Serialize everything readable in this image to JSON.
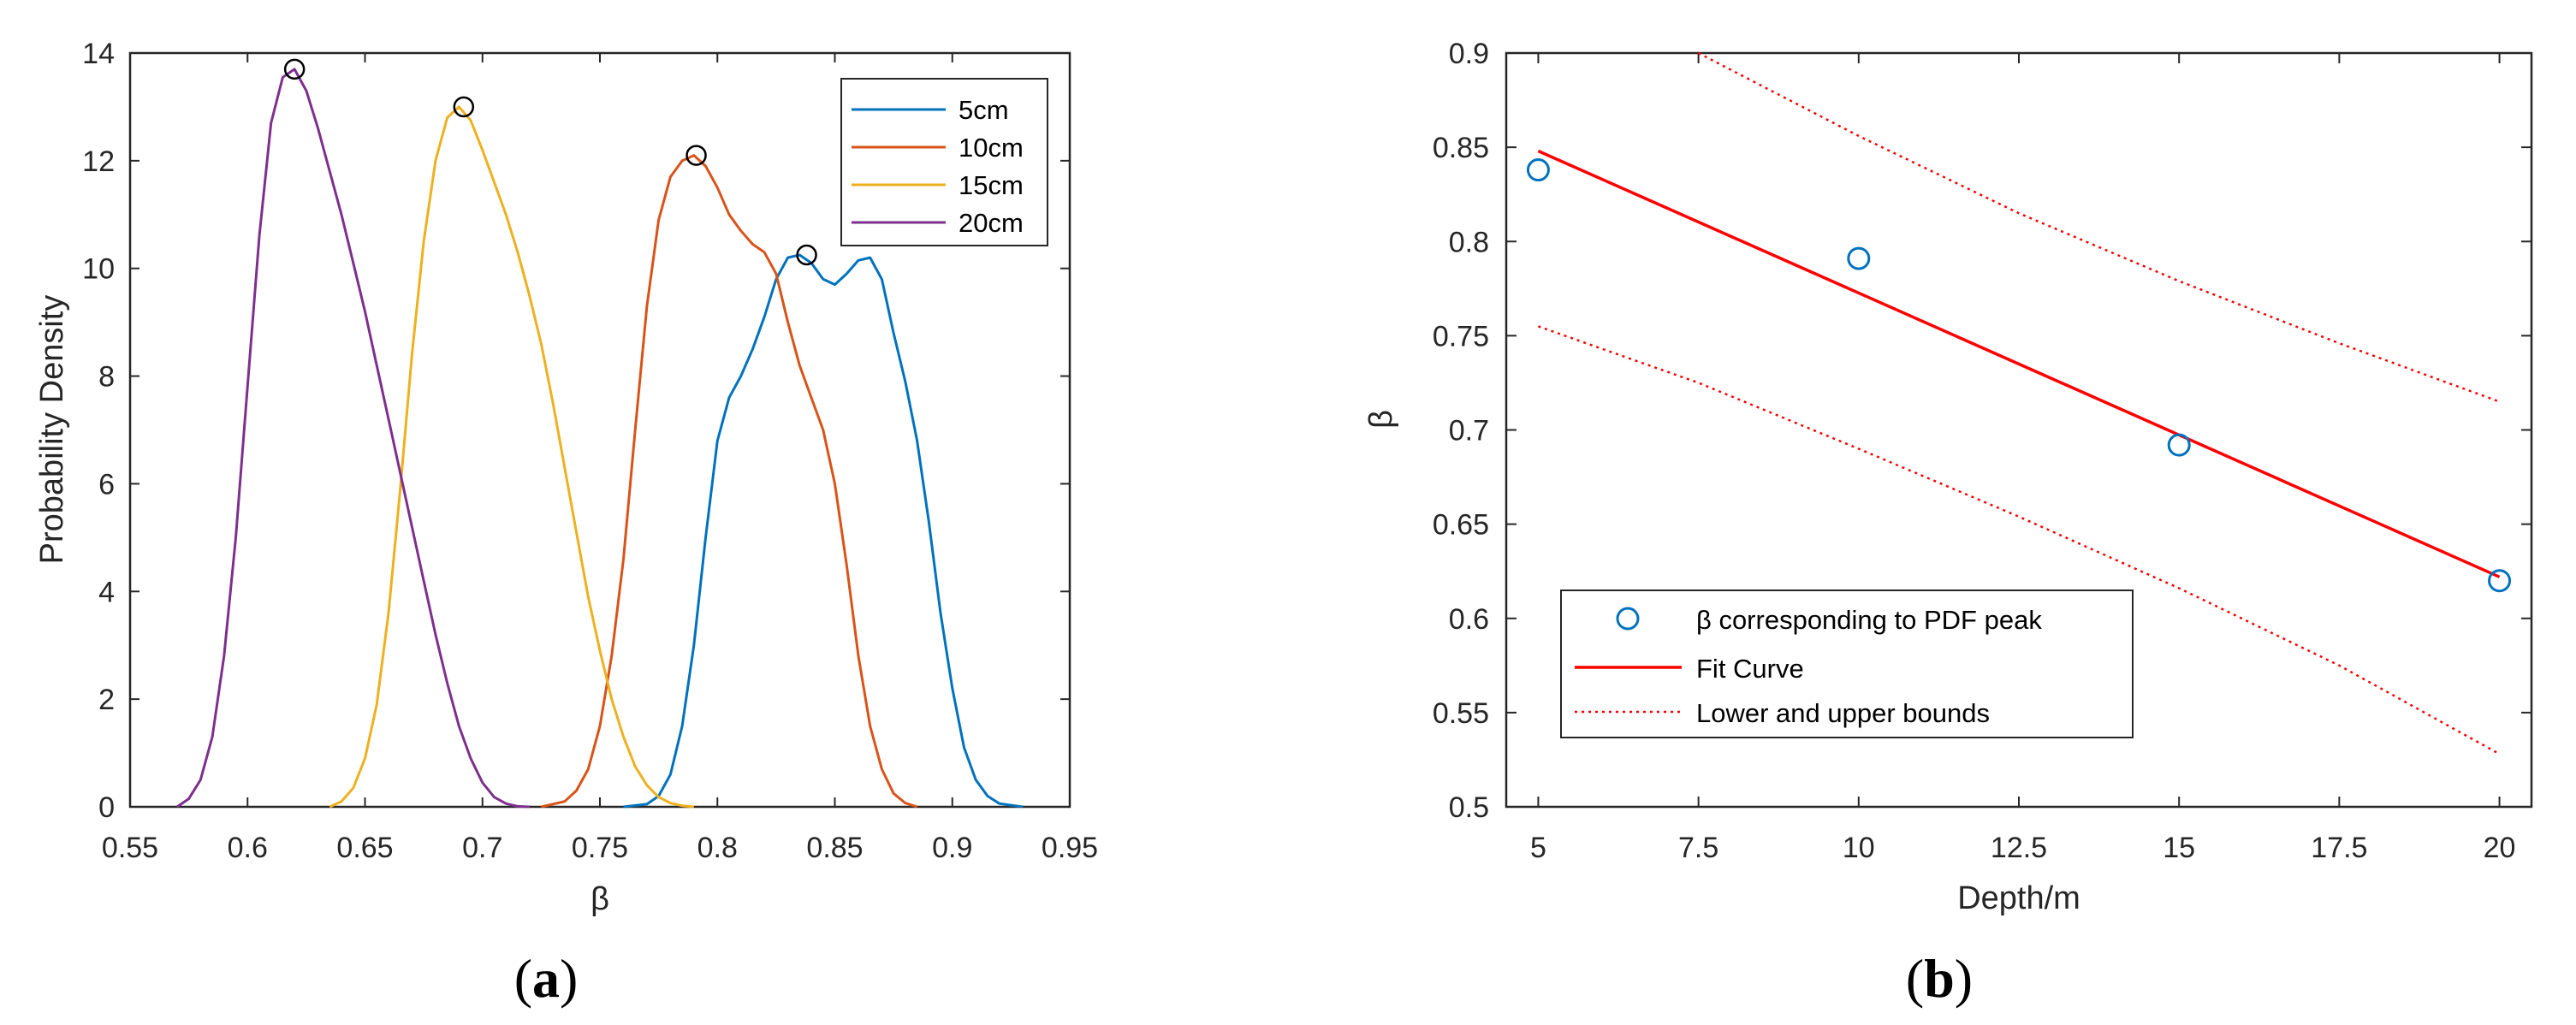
{
  "panel_labels": {
    "a": "(a)",
    "a_open": "(",
    "a_letter": "a",
    "a_close": ")",
    "b": "(b)",
    "b_open": "(",
    "b_letter": "b",
    "b_close": ")"
  },
  "chart_data": [
    {
      "id": "a",
      "type": "line",
      "title": "",
      "xlabel": "β",
      "ylabel": "Probability Density",
      "xlim": [
        0.55,
        0.95
      ],
      "ylim": [
        0,
        14
      ],
      "xticks": [
        "0.55",
        "0.6",
        "0.65",
        "0.7",
        "0.75",
        "0.8",
        "0.85",
        "0.9",
        "0.95"
      ],
      "yticks": [
        "0",
        "2",
        "4",
        "6",
        "8",
        "10",
        "12",
        "14"
      ],
      "grid": false,
      "legend_position": "top-right",
      "series": [
        {
          "name": "5cm",
          "color": "#0072BD",
          "x": [
            0.76,
            0.77,
            0.775,
            0.78,
            0.785,
            0.79,
            0.795,
            0.8,
            0.805,
            0.81,
            0.815,
            0.82,
            0.825,
            0.83,
            0.835,
            0.84,
            0.845,
            0.85,
            0.855,
            0.86,
            0.865,
            0.87,
            0.875,
            0.88,
            0.885,
            0.89,
            0.895,
            0.9,
            0.905,
            0.91,
            0.915,
            0.92,
            0.93
          ],
          "y": [
            0,
            0.05,
            0.2,
            0.6,
            1.5,
            3.0,
            5.0,
            6.8,
            7.6,
            8.0,
            8.5,
            9.1,
            9.8,
            10.2,
            10.25,
            10.1,
            9.8,
            9.7,
            9.9,
            10.15,
            10.2,
            9.8,
            8.8,
            7.9,
            6.8,
            5.3,
            3.6,
            2.2,
            1.1,
            0.5,
            0.2,
            0.06,
            0
          ]
        },
        {
          "name": "10cm",
          "color": "#D95319",
          "x": [
            0.725,
            0.735,
            0.74,
            0.745,
            0.75,
            0.755,
            0.76,
            0.765,
            0.77,
            0.775,
            0.78,
            0.785,
            0.79,
            0.795,
            0.8,
            0.805,
            0.81,
            0.815,
            0.82,
            0.825,
            0.83,
            0.835,
            0.84,
            0.845,
            0.85,
            0.855,
            0.86,
            0.865,
            0.87,
            0.875,
            0.88,
            0.885
          ],
          "y": [
            0,
            0.1,
            0.3,
            0.7,
            1.5,
            2.8,
            4.6,
            7.0,
            9.3,
            10.9,
            11.7,
            12.0,
            12.1,
            11.9,
            11.5,
            11.0,
            10.7,
            10.45,
            10.3,
            9.9,
            9.0,
            8.2,
            7.6,
            7.0,
            6.0,
            4.5,
            2.8,
            1.5,
            0.7,
            0.25,
            0.07,
            0
          ]
        },
        {
          "name": "15cm",
          "color": "#EDB120",
          "x": [
            0.635,
            0.64,
            0.645,
            0.65,
            0.655,
            0.66,
            0.665,
            0.67,
            0.675,
            0.68,
            0.685,
            0.69,
            0.695,
            0.7,
            0.705,
            0.71,
            0.715,
            0.72,
            0.725,
            0.73,
            0.735,
            0.74,
            0.745,
            0.75,
            0.755,
            0.76,
            0.765,
            0.77,
            0.775,
            0.78,
            0.785,
            0.79
          ],
          "y": [
            0,
            0.1,
            0.35,
            0.9,
            1.9,
            3.6,
            5.9,
            8.4,
            10.5,
            12.0,
            12.8,
            13.0,
            12.75,
            12.2,
            11.6,
            11.0,
            10.3,
            9.5,
            8.6,
            7.5,
            6.3,
            5.1,
            3.9,
            2.9,
            2.0,
            1.3,
            0.75,
            0.4,
            0.18,
            0.07,
            0.02,
            0
          ]
        },
        {
          "name": "20cm",
          "color": "#7E2F8E",
          "x": [
            0.57,
            0.575,
            0.58,
            0.585,
            0.59,
            0.595,
            0.6,
            0.605,
            0.61,
            0.615,
            0.62,
            0.625,
            0.63,
            0.635,
            0.64,
            0.645,
            0.65,
            0.655,
            0.66,
            0.665,
            0.67,
            0.675,
            0.68,
            0.685,
            0.69,
            0.695,
            0.7,
            0.705,
            0.71,
            0.715,
            0.72
          ],
          "y": [
            0,
            0.15,
            0.5,
            1.3,
            2.8,
            5.0,
            7.8,
            10.6,
            12.7,
            13.55,
            13.7,
            13.3,
            12.6,
            11.8,
            11.0,
            10.1,
            9.2,
            8.2,
            7.2,
            6.2,
            5.2,
            4.2,
            3.2,
            2.3,
            1.5,
            0.9,
            0.45,
            0.18,
            0.06,
            0.01,
            0
          ]
        }
      ],
      "peak_markers": {
        "x": [
          0.838,
          0.791,
          0.692,
          0.62
        ],
        "y": [
          10.25,
          12.1,
          13.0,
          13.7
        ],
        "style": "open black circle"
      }
    },
    {
      "id": "b",
      "type": "scatter",
      "title": "",
      "xlabel": "Depth/m",
      "ylabel": "β",
      "xlim": [
        4.5,
        20.5
      ],
      "ylim": [
        0.5,
        0.9
      ],
      "xticks": [
        "5",
        "7.5",
        "10",
        "12.5",
        "15",
        "17.5",
        "20"
      ],
      "yticks": [
        "0.5",
        "0.55",
        "0.6",
        "0.65",
        "0.7",
        "0.75",
        "0.8",
        "0.85",
        "0.9"
      ],
      "grid": false,
      "legend_position": "bottom-left",
      "series": [
        {
          "name": "β corresponding to PDF peak",
          "style": "open circle",
          "color": "#0072BD",
          "x": [
            5,
            10,
            15,
            20
          ],
          "y": [
            0.838,
            0.791,
            0.692,
            0.62
          ]
        },
        {
          "name": "Fit Curve",
          "style": "solid line",
          "color": "#FF0000",
          "x": [
            5,
            20
          ],
          "y": [
            0.848,
            0.622
          ]
        },
        {
          "name": "Lower and upper bounds",
          "style": "dotted line",
          "color": "#FF0000",
          "upper": {
            "x": [
              7.5,
              10,
              12.5,
              15,
              17.5,
              20
            ],
            "y": [
              0.9,
              0.856,
              0.815,
              0.779,
              0.746,
              0.715
            ]
          },
          "lower": {
            "x": [
              5,
              7.5,
              10,
              12.5,
              15,
              17.5,
              20
            ],
            "y": [
              0.755,
              0.725,
              0.69,
              0.654,
              0.616,
              0.575,
              0.528
            ]
          }
        }
      ]
    }
  ]
}
